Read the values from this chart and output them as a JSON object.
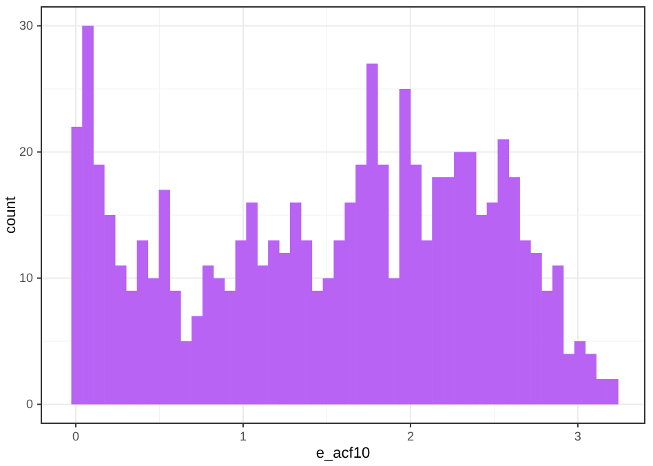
{
  "chart_data": {
    "type": "histogram",
    "xlabel": "e_acf10",
    "ylabel": "count",
    "color": "#b863f4",
    "bins": [
      -0.027,
      0.038,
      0.104,
      0.169,
      0.234,
      0.3,
      0.365,
      0.43,
      0.496,
      0.561,
      0.626,
      0.692,
      0.757,
      0.822,
      0.888,
      0.953,
      1.018,
      1.084,
      1.149,
      1.214,
      1.28,
      1.345,
      1.41,
      1.476,
      1.541,
      1.607,
      1.672,
      1.737,
      1.803,
      1.868,
      1.933,
      1.999,
      2.064,
      2.129,
      2.195,
      2.26,
      2.325,
      2.391,
      2.456,
      2.521,
      2.587,
      2.652,
      2.717,
      2.783,
      2.848,
      2.913,
      2.979,
      3.044,
      3.109,
      3.175,
      3.24
    ],
    "values": [
      22,
      30,
      19,
      15,
      11,
      9,
      13,
      10,
      17,
      9,
      5,
      7,
      11,
      10,
      9,
      13,
      16,
      11,
      13,
      12,
      16,
      13,
      9,
      10,
      13,
      16,
      19,
      27,
      19,
      10,
      25,
      19,
      13,
      18,
      18,
      20,
      20,
      15,
      16,
      21,
      18,
      13,
      12,
      9,
      11,
      4,
      5,
      4,
      2,
      2
    ],
    "xlim": [
      -0.206,
      3.4
    ],
    "ylim": [
      -1.5,
      31.5
    ],
    "xticks": [
      0,
      1,
      2,
      3
    ],
    "yticks": [
      0,
      10,
      20,
      30
    ],
    "grid": true
  }
}
